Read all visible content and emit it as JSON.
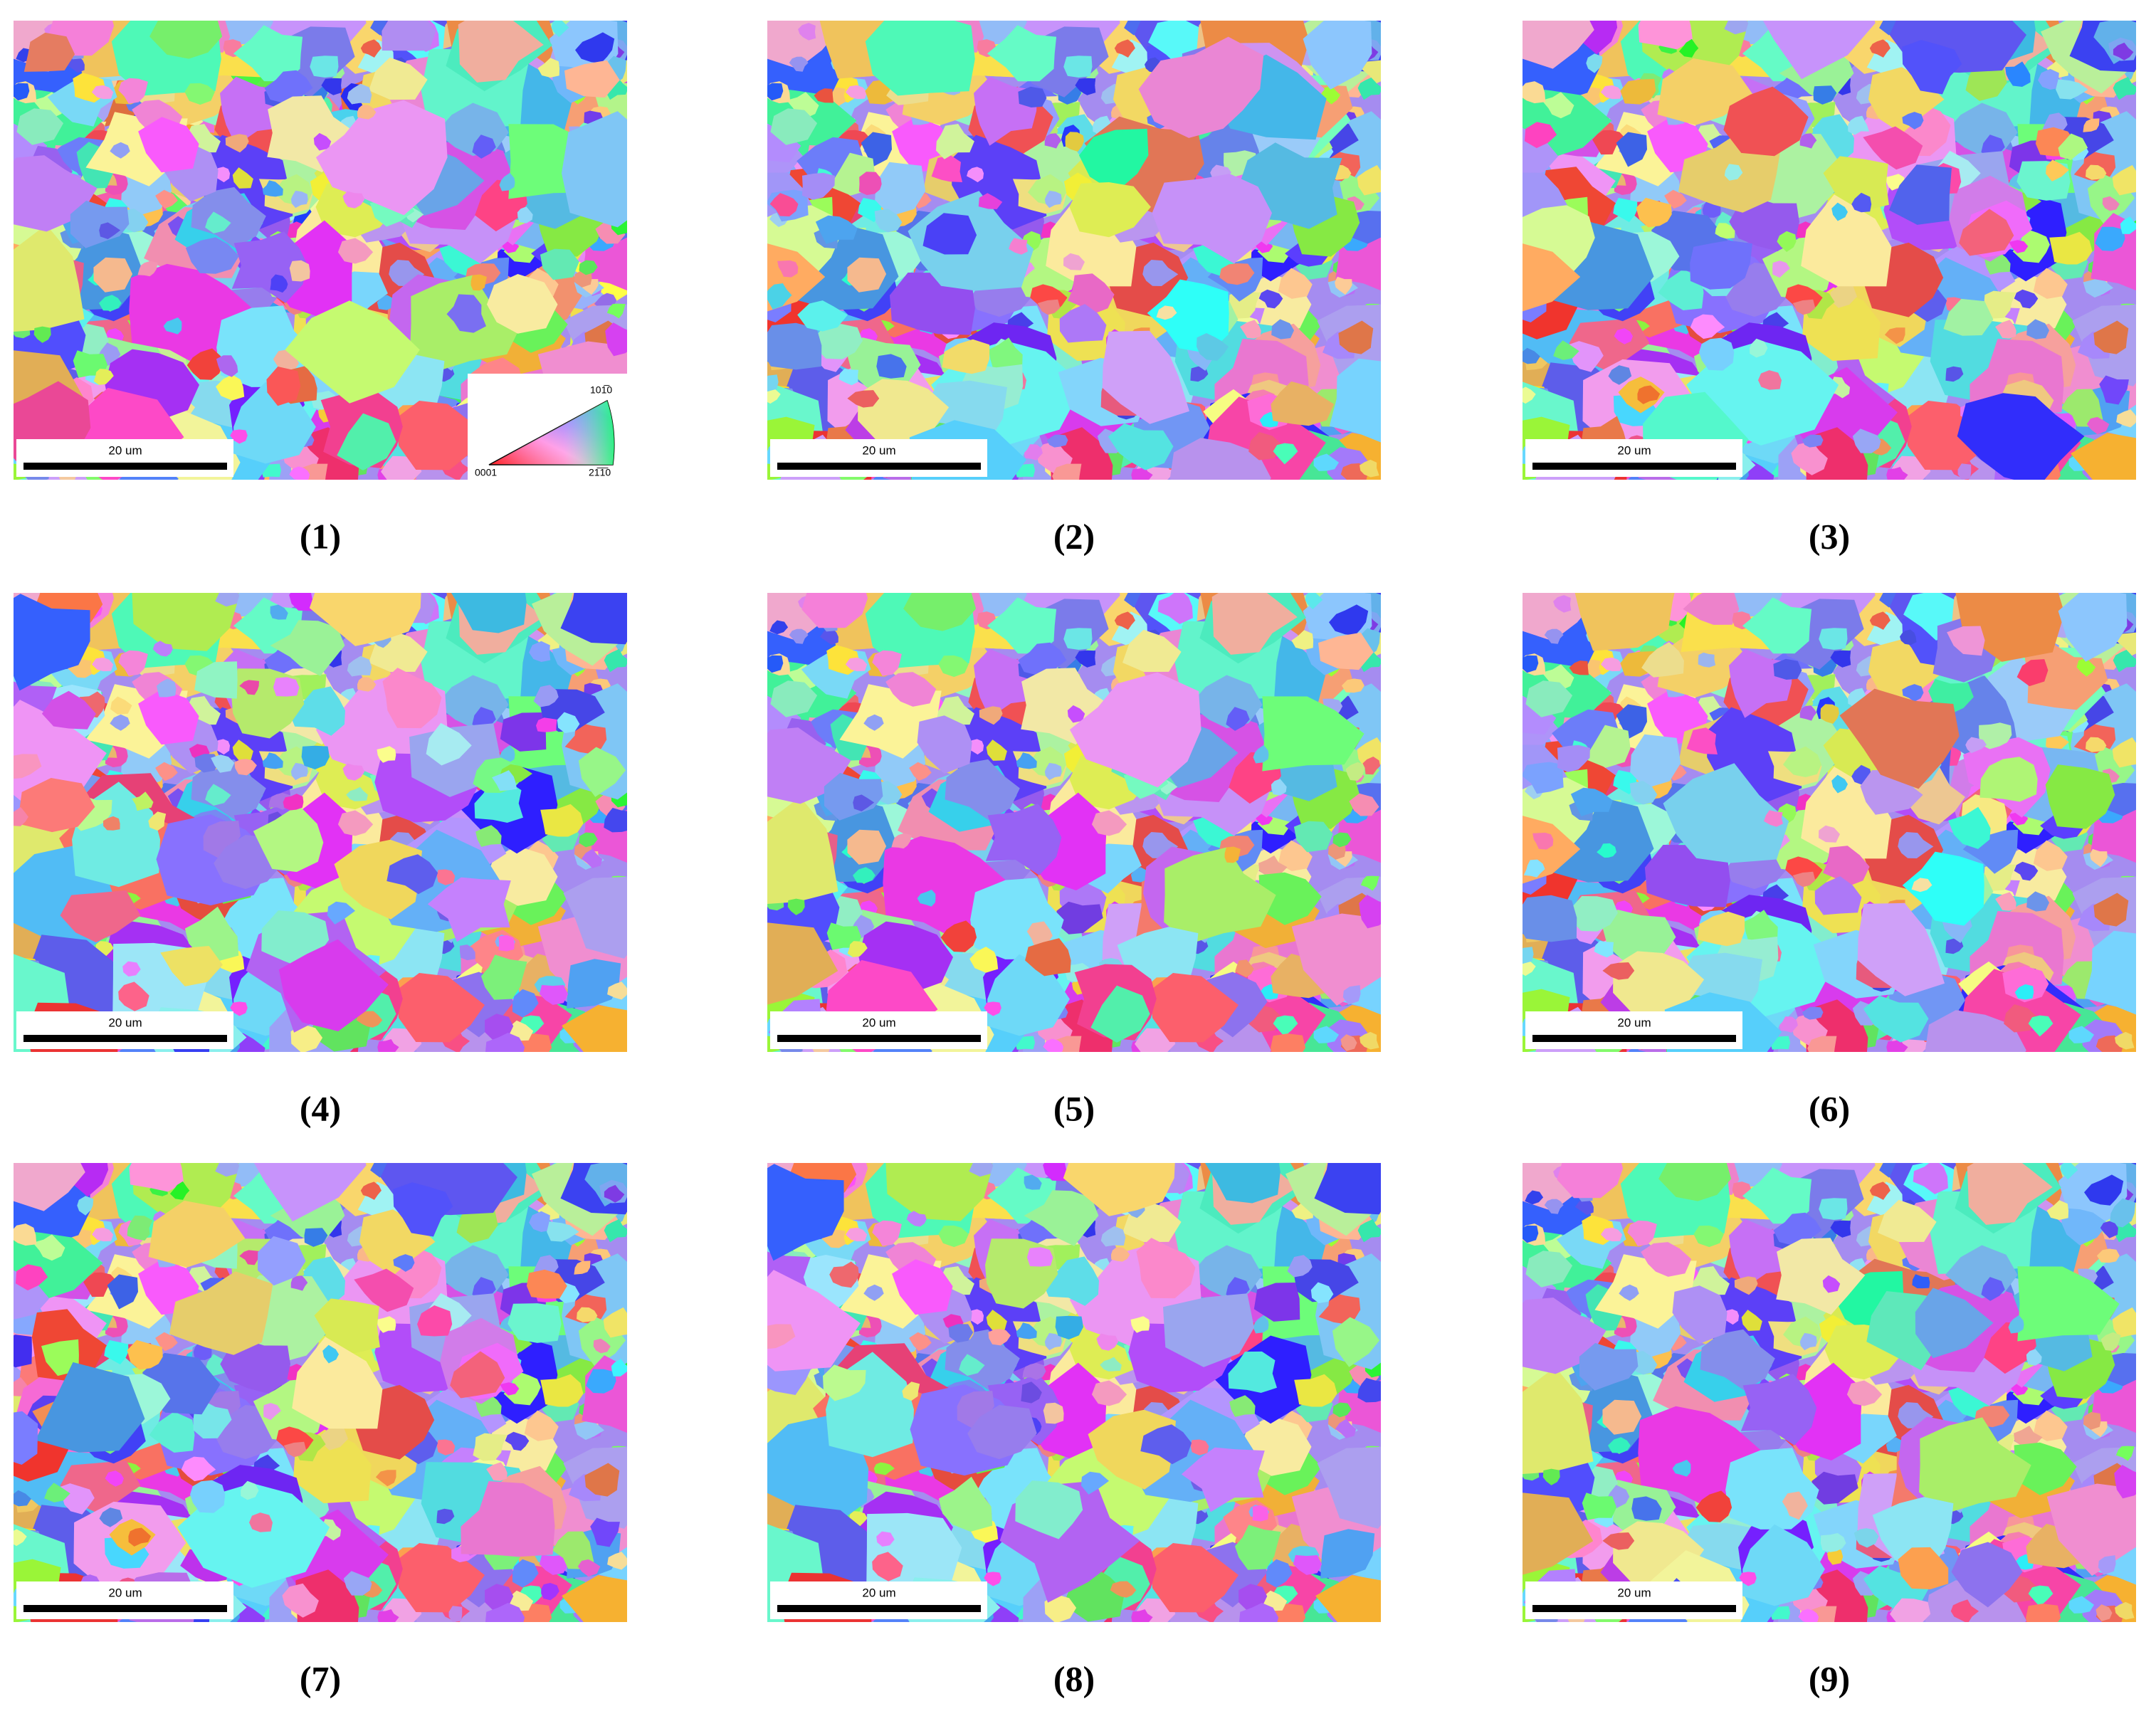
{
  "figure": {
    "panels": [
      {
        "label": "(1)",
        "scale_bar": "20 um"
      },
      {
        "label": "(2)",
        "scale_bar": "20 um"
      },
      {
        "label": "(3)",
        "scale_bar": "20 um"
      },
      {
        "label": "(4)",
        "scale_bar": "20 um"
      },
      {
        "label": "(5)",
        "scale_bar": "20 um"
      },
      {
        "label": "(6)",
        "scale_bar": "20 um"
      },
      {
        "label": "(7)",
        "scale_bar": "20 um"
      },
      {
        "label": "(8)",
        "scale_bar": "20 um"
      },
      {
        "label": "(9)",
        "scale_bar": "20 um"
      }
    ],
    "legend": {
      "top": "101̅0",
      "left": "0001",
      "right": "21̅1̅0"
    }
  }
}
